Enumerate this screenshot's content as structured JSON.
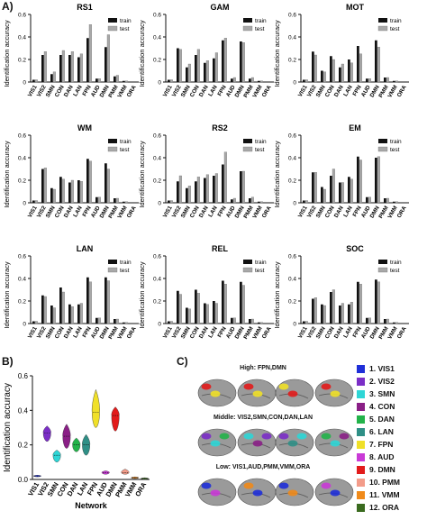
{
  "panels": {
    "a": "A)",
    "b": "B)",
    "c": "C)"
  },
  "colors": {
    "train": "#111111",
    "test": "#a8a8a8",
    "axis": "#111111"
  },
  "chart_data": [
    {
      "type": "bar",
      "title": "RS1",
      "ylabel": "Identification accuracy",
      "ylim": [
        0,
        0.6
      ],
      "yticks": [
        "0",
        "0.2",
        "0.4",
        "0.6"
      ],
      "categories": [
        "VIS1",
        "VIS2",
        "SMN",
        "CON",
        "DAN",
        "LAN",
        "FPN",
        "AUD",
        "DMN",
        "PMM",
        "VMM",
        "ORA"
      ],
      "series": [
        {
          "name": "train",
          "values": [
            0.02,
            0.24,
            0.07,
            0.24,
            0.24,
            0.22,
            0.39,
            0.03,
            0.31,
            0.05,
            0.01,
            0.0
          ]
        },
        {
          "name": "test",
          "values": [
            0.02,
            0.27,
            0.09,
            0.28,
            0.27,
            0.25,
            0.51,
            0.03,
            0.42,
            0.06,
            0.01,
            0.0
          ]
        }
      ],
      "legend": "top-right"
    },
    {
      "type": "bar",
      "title": "GAM",
      "ylabel": "Identification accuracy",
      "ylim": [
        0,
        0.6
      ],
      "yticks": [
        "0",
        "0.2",
        "0.4",
        "0.6"
      ],
      "categories": [
        "VIS1",
        "VIS2",
        "SMN",
        "CON",
        "DAN",
        "LAN",
        "FPN",
        "AUD",
        "DMN",
        "PMM",
        "VMM",
        "ORA"
      ],
      "series": [
        {
          "name": "train",
          "values": [
            0.02,
            0.3,
            0.13,
            0.24,
            0.17,
            0.21,
            0.37,
            0.03,
            0.36,
            0.03,
            0.01,
            0.0
          ]
        },
        {
          "name": "test",
          "values": [
            0.02,
            0.29,
            0.16,
            0.29,
            0.19,
            0.26,
            0.39,
            0.04,
            0.35,
            0.04,
            0.01,
            0.0
          ]
        }
      ],
      "legend": "top-right"
    },
    {
      "type": "bar",
      "title": "MOT",
      "ylabel": "Identification accuracy",
      "ylim": [
        0,
        0.6
      ],
      "yticks": [
        "0",
        "0.2",
        "0.4",
        "0.6"
      ],
      "categories": [
        "VIS1",
        "VIS2",
        "SMN",
        "CON",
        "DAN",
        "LAN",
        "FPN",
        "AUD",
        "DMN",
        "PMM",
        "VMM",
        "ORA"
      ],
      "series": [
        {
          "name": "train",
          "values": [
            0.02,
            0.27,
            0.1,
            0.23,
            0.13,
            0.2,
            0.32,
            0.03,
            0.37,
            0.04,
            0.01,
            0.0
          ]
        },
        {
          "name": "test",
          "values": [
            0.02,
            0.24,
            0.09,
            0.2,
            0.16,
            0.17,
            0.25,
            0.03,
            0.31,
            0.04,
            0.01,
            0.0
          ]
        }
      ],
      "legend": "top-right"
    },
    {
      "type": "bar",
      "title": "WM",
      "ylabel": "Identification accuracy",
      "ylim": [
        0,
        0.6
      ],
      "yticks": [
        "0",
        "0.2",
        "0.4",
        "0.6"
      ],
      "categories": [
        "VIS1",
        "VIS2",
        "SMN",
        "CON",
        "DAN",
        "LAN",
        "FPN",
        "AUD",
        "DMN",
        "PMM",
        "VMM",
        "ORA"
      ],
      "series": [
        {
          "name": "train",
          "values": [
            0.02,
            0.3,
            0.13,
            0.23,
            0.18,
            0.2,
            0.39,
            0.05,
            0.35,
            0.04,
            0.01,
            0.0
          ]
        },
        {
          "name": "test",
          "values": [
            0.02,
            0.31,
            0.12,
            0.21,
            0.2,
            0.19,
            0.37,
            0.05,
            0.3,
            0.04,
            0.01,
            0.0
          ]
        }
      ],
      "legend": "top-right"
    },
    {
      "type": "bar",
      "title": "RS2",
      "ylabel": "Identification accuracy",
      "ylim": [
        0,
        0.6
      ],
      "yticks": [
        "0",
        "0.2",
        "0.4",
        "0.6"
      ],
      "categories": [
        "VIS1",
        "VIS2",
        "SMN",
        "CON",
        "DAN",
        "LAN",
        "FPN",
        "AUD",
        "DMN",
        "PMM",
        "VMM",
        "ORA"
      ],
      "series": [
        {
          "name": "train",
          "values": [
            0.02,
            0.19,
            0.13,
            0.19,
            0.22,
            0.24,
            0.34,
            0.03,
            0.28,
            0.04,
            0.01,
            0.0
          ]
        },
        {
          "name": "test",
          "values": [
            0.02,
            0.24,
            0.15,
            0.23,
            0.25,
            0.26,
            0.45,
            0.04,
            0.28,
            0.05,
            0.01,
            0.0
          ]
        }
      ],
      "legend": "top-right"
    },
    {
      "type": "bar",
      "title": "EM",
      "ylabel": "Identification accuracy",
      "ylim": [
        0,
        0.6
      ],
      "yticks": [
        "0",
        "0.2",
        "0.4",
        "0.6"
      ],
      "categories": [
        "VIS1",
        "VIS2",
        "SMN",
        "CON",
        "DAN",
        "LAN",
        "FPN",
        "AUD",
        "DMN",
        "PMM",
        "VMM",
        "ORA"
      ],
      "series": [
        {
          "name": "train",
          "values": [
            0.02,
            0.27,
            0.14,
            0.24,
            0.18,
            0.23,
            0.41,
            0.05,
            0.4,
            0.04,
            0.01,
            0.0
          ]
        },
        {
          "name": "test",
          "values": [
            0.02,
            0.27,
            0.12,
            0.3,
            0.18,
            0.21,
            0.38,
            0.05,
            0.41,
            0.04,
            0.01,
            0.0
          ]
        }
      ],
      "legend": "top-right"
    },
    {
      "type": "bar",
      "title": "LAN",
      "ylabel": "Identification accuracy",
      "ylim": [
        0,
        0.6
      ],
      "yticks": [
        "0",
        "0.2",
        "0.4",
        "0.6"
      ],
      "categories": [
        "VIS1",
        "VIS2",
        "SMN",
        "CON",
        "DAN",
        "LAN",
        "FPN",
        "AUD",
        "DMN",
        "PMM",
        "VMM",
        "ORA"
      ],
      "series": [
        {
          "name": "train",
          "values": [
            0.02,
            0.25,
            0.16,
            0.32,
            0.17,
            0.17,
            0.41,
            0.05,
            0.41,
            0.04,
            0.01,
            0.0
          ]
        },
        {
          "name": "test",
          "values": [
            0.02,
            0.24,
            0.14,
            0.28,
            0.15,
            0.18,
            0.37,
            0.05,
            0.38,
            0.04,
            0.01,
            0.0
          ]
        }
      ],
      "legend": "top-right"
    },
    {
      "type": "bar",
      "title": "REL",
      "ylabel": "Identification accuracy",
      "ylim": [
        0,
        0.6
      ],
      "yticks": [
        "0",
        "0.2",
        "0.4",
        "0.6"
      ],
      "categories": [
        "VIS1",
        "VIS2",
        "SMN",
        "CON",
        "DAN",
        "LAN",
        "FPN",
        "AUD",
        "DMN",
        "PMM",
        "VMM",
        "ORA"
      ],
      "series": [
        {
          "name": "train",
          "values": [
            0.02,
            0.29,
            0.14,
            0.3,
            0.18,
            0.2,
            0.38,
            0.05,
            0.37,
            0.04,
            0.01,
            0.0
          ]
        },
        {
          "name": "test",
          "values": [
            0.02,
            0.26,
            0.13,
            0.27,
            0.17,
            0.18,
            0.35,
            0.05,
            0.34,
            0.04,
            0.01,
            0.0
          ]
        }
      ],
      "legend": "top-right"
    },
    {
      "type": "bar",
      "title": "SOC",
      "ylabel": "Identification accuracy",
      "ylim": [
        0,
        0.6
      ],
      "yticks": [
        "0",
        "0.2",
        "0.4",
        "0.6"
      ],
      "categories": [
        "VIS1",
        "VIS2",
        "SMN",
        "CON",
        "DAN",
        "LAN",
        "FPN",
        "AUD",
        "DMN",
        "PMM",
        "VMM",
        "ORA"
      ],
      "series": [
        {
          "name": "train",
          "values": [
            0.02,
            0.22,
            0.17,
            0.28,
            0.16,
            0.17,
            0.37,
            0.05,
            0.39,
            0.04,
            0.01,
            0.0
          ]
        },
        {
          "name": "test",
          "values": [
            0.02,
            0.23,
            0.16,
            0.3,
            0.18,
            0.19,
            0.35,
            0.05,
            0.37,
            0.04,
            0.01,
            0.0
          ]
        }
      ],
      "legend": "top-right"
    },
    {
      "type": "violin",
      "title": "",
      "xlabel": "Network",
      "ylabel": "Identification accuracy",
      "ylim": [
        0,
        0.6
      ],
      "yticks": [
        "0.0",
        "0.2",
        "0.4",
        "0.6"
      ],
      "categories": [
        "VIS1",
        "VIS2",
        "SMN",
        "CON",
        "DAN",
        "LAN",
        "FPN",
        "AUD",
        "DMN",
        "PMM",
        "VMM",
        "ORA"
      ],
      "medians": [
        0.02,
        0.27,
        0.14,
        0.25,
        0.2,
        0.2,
        0.39,
        0.04,
        0.37,
        0.04,
        0.01,
        0.005
      ],
      "ranges": [
        [
          0.015,
          0.025
        ],
        [
          0.22,
          0.31
        ],
        [
          0.1,
          0.17
        ],
        [
          0.18,
          0.32
        ],
        [
          0.16,
          0.24
        ],
        [
          0.14,
          0.26
        ],
        [
          0.3,
          0.52
        ],
        [
          0.03,
          0.05
        ],
        [
          0.28,
          0.42
        ],
        [
          0.03,
          0.06
        ],
        [
          0.005,
          0.015
        ],
        [
          0.0,
          0.01
        ]
      ],
      "colors": [
        "#1f2fd8",
        "#7b2ec7",
        "#2ed6d6",
        "#8a1f86",
        "#23b34a",
        "#2f8f86",
        "#f0e028",
        "#c93ad6",
        "#e21b1b",
        "#f39c8a",
        "#f08a1a",
        "#3a6b1f"
      ]
    }
  ],
  "brain_rows": [
    {
      "label": "High: FPN,DMN"
    },
    {
      "label": "Middle: VIS2,SMN,CON,DAN,LAN"
    },
    {
      "label": "Low: VIS1,AUD,PMM,VMM,ORA"
    }
  ],
  "legend_c": [
    {
      "label": "1. VIS1",
      "color": "#1f2fd8"
    },
    {
      "label": "2. VIS2",
      "color": "#7b2ec7"
    },
    {
      "label": "3. SMN",
      "color": "#2ed6d6"
    },
    {
      "label": "4. CON",
      "color": "#8a1f86"
    },
    {
      "label": "5. DAN",
      "color": "#23b34a"
    },
    {
      "label": "6. LAN",
      "color": "#2f8f86"
    },
    {
      "label": "7. FPN",
      "color": "#f0e028"
    },
    {
      "label": "8. AUD",
      "color": "#c93ad6"
    },
    {
      "label": "9. DMN",
      "color": "#e21b1b"
    },
    {
      "label": "10. PMM",
      "color": "#f39c8a"
    },
    {
      "label": "11. VMM",
      "color": "#f08a1a"
    },
    {
      "label": "12. ORA",
      "color": "#3a6b1f"
    }
  ]
}
